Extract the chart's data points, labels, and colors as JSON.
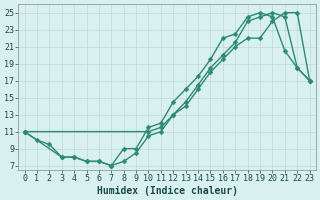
{
  "line1_x": [
    0,
    1,
    2,
    3,
    4,
    5,
    6,
    7,
    8,
    9,
    10,
    11,
    12,
    13,
    14,
    15,
    16,
    17,
    18,
    19,
    20,
    21,
    22,
    23
  ],
  "line1_y": [
    11,
    10,
    9.5,
    8,
    8,
    7.5,
    7.5,
    7,
    7.5,
    8.5,
    10.5,
    11,
    13,
    14,
    16,
    18,
    19.5,
    21,
    22,
    22,
    24,
    25,
    25,
    17
  ],
  "line2_x": [
    0,
    3,
    4,
    5,
    6,
    7,
    8,
    9,
    10,
    11,
    12,
    13,
    14,
    15,
    16,
    17,
    18,
    19,
    20,
    21,
    22,
    23
  ],
  "line2_y": [
    11,
    8,
    8,
    7.5,
    7.5,
    7,
    9,
    9,
    11.5,
    12,
    14.5,
    16,
    17.5,
    19.5,
    22,
    22.5,
    24.5,
    25,
    24.5,
    20.5,
    18.5,
    17
  ],
  "line3_x": [
    0,
    10,
    11,
    12,
    13,
    14,
    15,
    16,
    17,
    18,
    19,
    20,
    21,
    22,
    23
  ],
  "line3_y": [
    11,
    11,
    11.5,
    13,
    14.5,
    16.5,
    18.5,
    20,
    21.5,
    24,
    24.5,
    25,
    24.5,
    18.5,
    17
  ],
  "line_color": "#2e8b6e",
  "bg_color": "#d8f0f0",
  "grid_color": "#c0d8d8",
  "xlabel": "Humidex (Indice chaleur)",
  "xlim": [
    -0.5,
    23.5
  ],
  "ylim": [
    6.5,
    26
  ],
  "xticks": [
    0,
    1,
    2,
    3,
    4,
    5,
    6,
    7,
    8,
    9,
    10,
    11,
    12,
    13,
    14,
    15,
    16,
    17,
    18,
    19,
    20,
    21,
    22,
    23
  ],
  "yticks": [
    7,
    9,
    11,
    13,
    15,
    17,
    19,
    21,
    23,
    25
  ],
  "xlabel_fontsize": 7,
  "tick_fontsize": 6,
  "marker_size": 2.5,
  "line_width": 1.0
}
